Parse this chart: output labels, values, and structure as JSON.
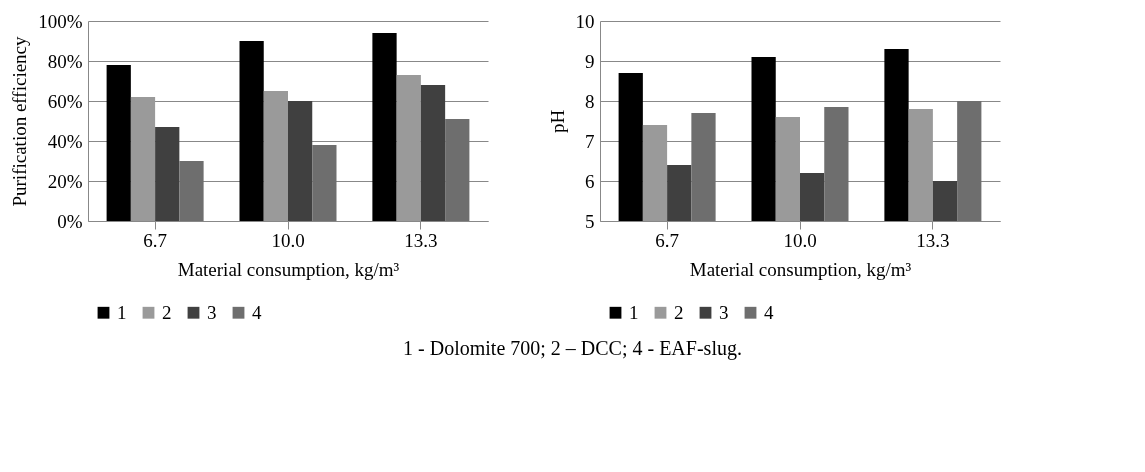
{
  "chart_data": [
    {
      "type": "bar",
      "xlabel": "Material consumption, kg/m³",
      "ylabel": "Purification efficiency",
      "categories": [
        "6.7",
        "10.0",
        "13.3"
      ],
      "series": [
        {
          "name": "1",
          "color": "#000000",
          "values": [
            78,
            90,
            94
          ]
        },
        {
          "name": "2",
          "color": "#9a9a9a",
          "values": [
            62,
            65,
            73
          ]
        },
        {
          "name": "3",
          "color": "#404040",
          "values": [
            47,
            60,
            68
          ]
        },
        {
          "name": "4",
          "color": "#6e6e6e",
          "values": [
            30,
            38,
            51
          ]
        }
      ],
      "ylim": [
        0,
        100
      ],
      "yticks": [
        {
          "value": 0,
          "label": "0%"
        },
        {
          "value": 20,
          "label": "20%"
        },
        {
          "value": 40,
          "label": "40%"
        },
        {
          "value": 60,
          "label": "60%"
        },
        {
          "value": 80,
          "label": "80%"
        },
        {
          "value": 100,
          "label": "100%"
        }
      ],
      "grid": "y",
      "legend": "bottom"
    },
    {
      "type": "bar",
      "xlabel": "Material consumption, kg/m³",
      "ylabel": "pH",
      "categories": [
        "6.7",
        "10.0",
        "13.3"
      ],
      "series": [
        {
          "name": "1",
          "color": "#000000",
          "values": [
            8.7,
            9.1,
            9.3
          ]
        },
        {
          "name": "2",
          "color": "#9a9a9a",
          "values": [
            7.4,
            7.6,
            7.8
          ]
        },
        {
          "name": "3",
          "color": "#404040",
          "values": [
            6.4,
            6.2,
            6.0
          ]
        },
        {
          "name": "4",
          "color": "#6e6e6e",
          "values": [
            7.7,
            7.85,
            8.0
          ]
        }
      ],
      "ylim": [
        5,
        10
      ],
      "yticks": [
        5,
        6,
        7,
        8,
        9,
        10
      ],
      "grid": "y",
      "legend": "bottom",
      "annotations": [
        "1 - Dolomite 700; 2 – DCC; 4 - EAF-slug."
      ]
    }
  ]
}
